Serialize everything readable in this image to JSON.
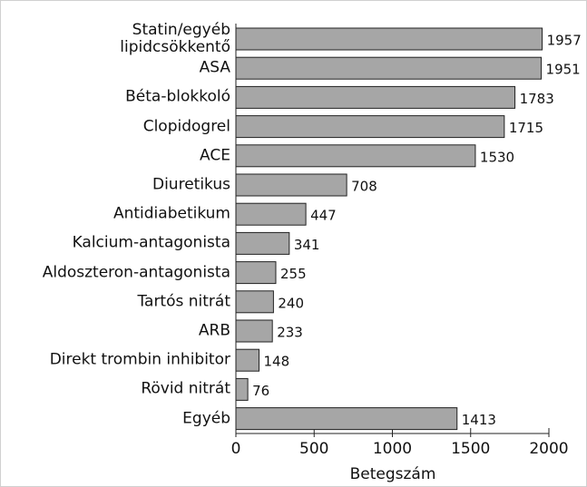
{
  "chart_data": {
    "type": "bar",
    "orientation": "horizontal",
    "categories": [
      "Statin/egyéb\nlipidcsökkentő",
      "ASA",
      "Béta-blokkoló",
      "Clopidogrel",
      "ACE",
      "Diuretikus",
      "Antidiabetikum",
      "Kalcium-antagonista",
      "Aldoszteron-antagonista",
      "Tartós nitrát",
      "ARB",
      "Direkt trombin inhibitor",
      "Rövid nitrát",
      "Egyéb"
    ],
    "values": [
      1957,
      1951,
      1783,
      1715,
      1530,
      708,
      447,
      341,
      255,
      240,
      233,
      148,
      76,
      1413
    ],
    "color": "#a6a6a6",
    "xlim": [
      0,
      2000
    ],
    "xticks": [
      0,
      500,
      1000,
      1500,
      2000
    ],
    "xlabel": "Betegszám"
  }
}
